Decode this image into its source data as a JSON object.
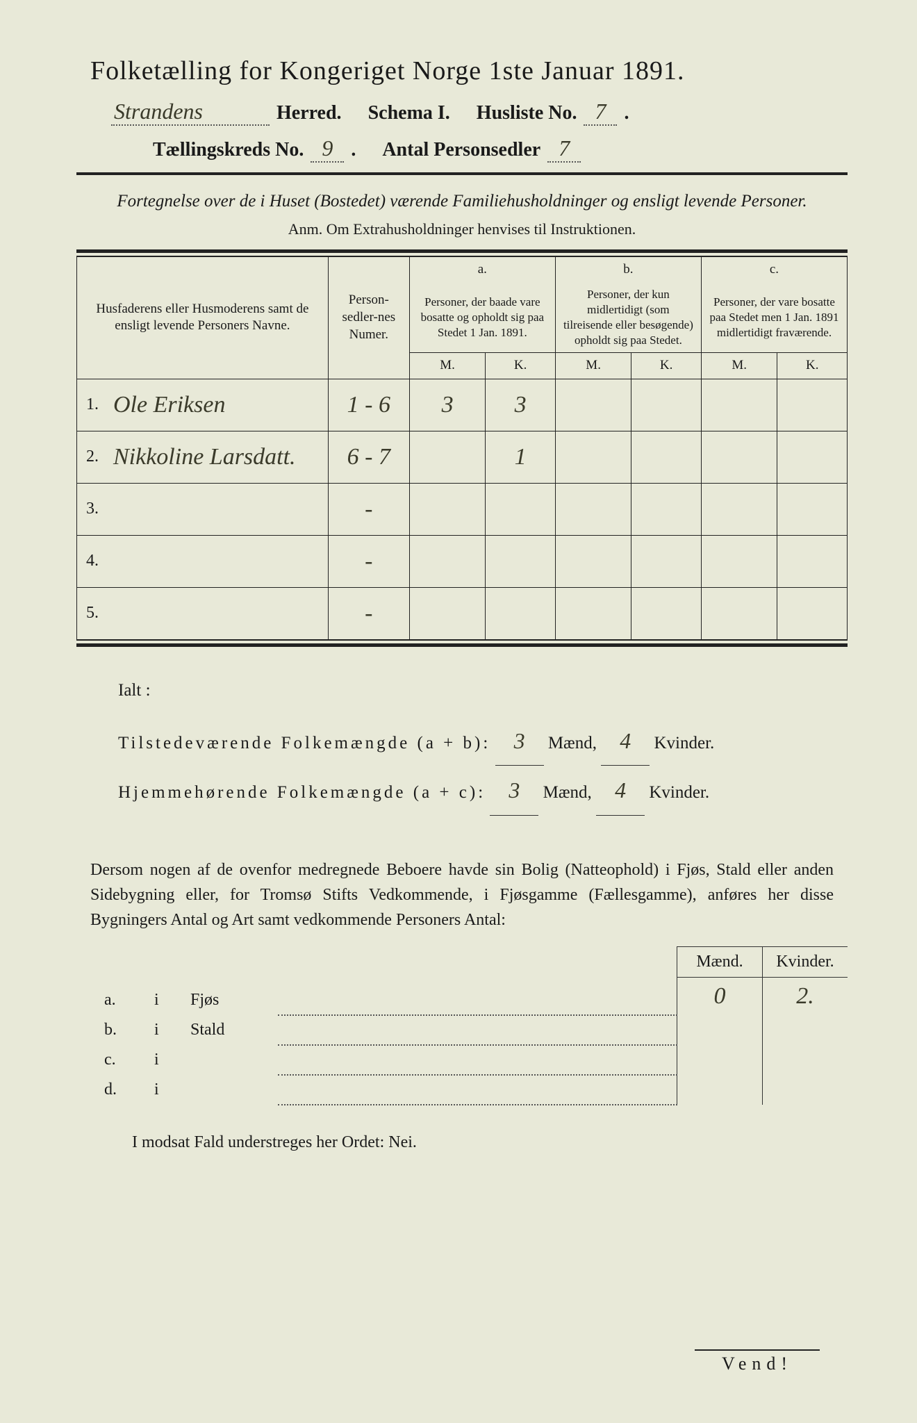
{
  "title": "Folketælling for Kongeriget Norge 1ste Januar 1891.",
  "header": {
    "herred_value": "Strandens",
    "herred_label": "Herred.",
    "schema_label": "Schema I.",
    "husliste_label": "Husliste No.",
    "husliste_no": "7",
    "kreds_label": "Tællingskreds No.",
    "kreds_no": "9",
    "personsedler_label": "Antal Personsedler",
    "personsedler_no": "7"
  },
  "subtitle": "Fortegnelse over de i Huset (Bostedet) værende Familiehusholdninger og ensligt levende Personer.",
  "anm": "Anm.  Om Extrahusholdninger henvises til Instruktionen.",
  "columns": {
    "names": "Husfaderens eller Husmoderens samt de ensligt levende Personers Navne.",
    "personsedler": "Person-sedler-nes Numer.",
    "a_label": "a.",
    "a_text": "Personer, der baade vare bosatte og opholdt sig paa Stedet 1 Jan. 1891.",
    "b_label": "b.",
    "b_text": "Personer, der kun midlertidigt (som tilreisende eller besøgende) opholdt sig paa Stedet.",
    "c_label": "c.",
    "c_text": "Personer, der vare bosatte paa Stedet men 1 Jan. 1891 midlertidigt fraværende.",
    "m": "M.",
    "k": "K."
  },
  "rows": [
    {
      "n": "1.",
      "name": "Ole Eriksen",
      "sedler": "1 - 6",
      "am": "3",
      "ak": "3",
      "bm": "",
      "bk": "",
      "cm": "",
      "ck": ""
    },
    {
      "n": "2.",
      "name": "Nikkoline Larsdatt.",
      "sedler": "6 - 7",
      "am": "",
      "ak": "1",
      "bm": "",
      "bk": "",
      "cm": "",
      "ck": ""
    },
    {
      "n": "3.",
      "name": "",
      "sedler": "-",
      "am": "",
      "ak": "",
      "bm": "",
      "bk": "",
      "cm": "",
      "ck": ""
    },
    {
      "n": "4.",
      "name": "",
      "sedler": "-",
      "am": "",
      "ak": "",
      "bm": "",
      "bk": "",
      "cm": "",
      "ck": ""
    },
    {
      "n": "5.",
      "name": "",
      "sedler": "-",
      "am": "",
      "ak": "",
      "bm": "",
      "bk": "",
      "cm": "",
      "ck": ""
    }
  ],
  "totals": {
    "ialt": "Ialt :",
    "line1_label": "Tilstedeværende Folkemængde (a + b):",
    "line1_m": "3",
    "line1_k": "4",
    "line2_label": "Hjemmehørende Folkemængde (a + c):",
    "line2_m": "3",
    "line2_k": "4",
    "maend": "Mænd,",
    "kvinder": "Kvinder."
  },
  "bodytext": "Dersom nogen af de ovenfor medregnede Beboere havde sin Bolig (Natteophold) i Fjøs, Stald eller anden Sidebygning eller, for Tromsø Stifts Vedkommende, i Fjøsgamme (Fællesgamme), anføres her disse Bygningers Antal og Art samt vedkommende Personers Antal:",
  "dwellings": {
    "maend": "Mænd.",
    "kvinder": "Kvinder.",
    "rows": [
      {
        "key": "a.",
        "i": "i",
        "label": "Fjøs",
        "m": "0",
        "k": "2."
      },
      {
        "key": "b.",
        "i": "i",
        "label": "Stald",
        "m": "",
        "k": ""
      },
      {
        "key": "c.",
        "i": "i",
        "label": "",
        "m": "",
        "k": ""
      },
      {
        "key": "d.",
        "i": "i",
        "label": "",
        "m": "",
        "k": ""
      }
    ]
  },
  "footer": "I modsat Fald understreges her Ordet: Nei.",
  "vend": "Vend!"
}
